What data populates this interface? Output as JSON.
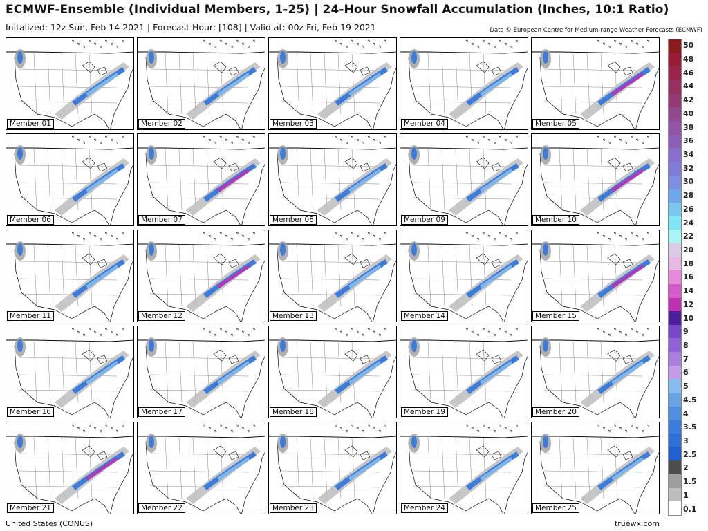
{
  "header": {
    "title": "ECMWF-Ensemble (Individual Members, 1-25) | 24-Hour Snowfall Accumulation (Inches, 10:1 Ratio)",
    "subtitle": "Initalized: 12z Sun, Feb 14 2021  |  Forecast Hour: [108]  |  Valid at: 00z Fri, Feb 19 2021",
    "credit": "Data © European Centre for Medium-range Weather Forecasts (ECMWF)"
  },
  "members": [
    {
      "label": "Member 01",
      "intensity": 0.7
    },
    {
      "label": "Member 02",
      "intensity": 0.7
    },
    {
      "label": "Member 03",
      "intensity": 0.75
    },
    {
      "label": "Member 04",
      "intensity": 0.8
    },
    {
      "label": "Member 05",
      "intensity": 0.85
    },
    {
      "label": "Member 06",
      "intensity": 0.7
    },
    {
      "label": "Member 07",
      "intensity": 0.95
    },
    {
      "label": "Member 08",
      "intensity": 0.75
    },
    {
      "label": "Member 09",
      "intensity": 0.7
    },
    {
      "label": "Member 10",
      "intensity": 0.85
    },
    {
      "label": "Member 11",
      "intensity": 0.7
    },
    {
      "label": "Member 12",
      "intensity": 0.85
    },
    {
      "label": "Member 13",
      "intensity": 0.75
    },
    {
      "label": "Member 14",
      "intensity": 0.7
    },
    {
      "label": "Member 15",
      "intensity": 0.85
    },
    {
      "label": "Member 16",
      "intensity": 0.8
    },
    {
      "label": "Member 17",
      "intensity": 0.8
    },
    {
      "label": "Member 18",
      "intensity": 0.7
    },
    {
      "label": "Member 19",
      "intensity": 0.75
    },
    {
      "label": "Member 20",
      "intensity": 0.65
    },
    {
      "label": "Member 21",
      "intensity": 0.85
    },
    {
      "label": "Member 22",
      "intensity": 0.8
    },
    {
      "label": "Member 23",
      "intensity": 0.7
    },
    {
      "label": "Member 24",
      "intensity": 0.8
    },
    {
      "label": "Member 25",
      "intensity": 0.65
    }
  ],
  "legend": {
    "ticks": [
      "0.1",
      "1",
      "1.5",
      "2",
      "2.5",
      "3",
      "3.5",
      "4",
      "4.5",
      "5",
      "6",
      "7",
      "8",
      "9",
      "10",
      "12",
      "14",
      "16",
      "18",
      "20",
      "22",
      "24",
      "26",
      "28",
      "30",
      "32",
      "34",
      "36",
      "38",
      "40",
      "42",
      "44",
      "46",
      "48",
      "50"
    ],
    "colors": [
      "#ffffff",
      "#bdbdbd",
      "#9e9e9e",
      "#4d4d4d",
      "#1f5fd1",
      "#2f6fd6",
      "#3c7ddb",
      "#4f8fe0",
      "#68a3e6",
      "#84bdee",
      "#c39be8",
      "#a97fdf",
      "#8f63d5",
      "#7647c8",
      "#4b1f9a",
      "#c12fb5",
      "#d65ac8",
      "#e78ad8",
      "#eab6e4",
      "#d8cbe6",
      "#a8f5f5",
      "#7fe6f2",
      "#78c7ef",
      "#6ea7ea",
      "#7d8fe3",
      "#7f7bd9",
      "#8a6ecd",
      "#8c60b8",
      "#8f55a4",
      "#91488c",
      "#943a73",
      "#97305e",
      "#9a244b",
      "#9a1a38",
      "#8c1b1b"
    ]
  },
  "footer": {
    "region": "United States (CONUS)",
    "site": "truewx.com"
  }
}
